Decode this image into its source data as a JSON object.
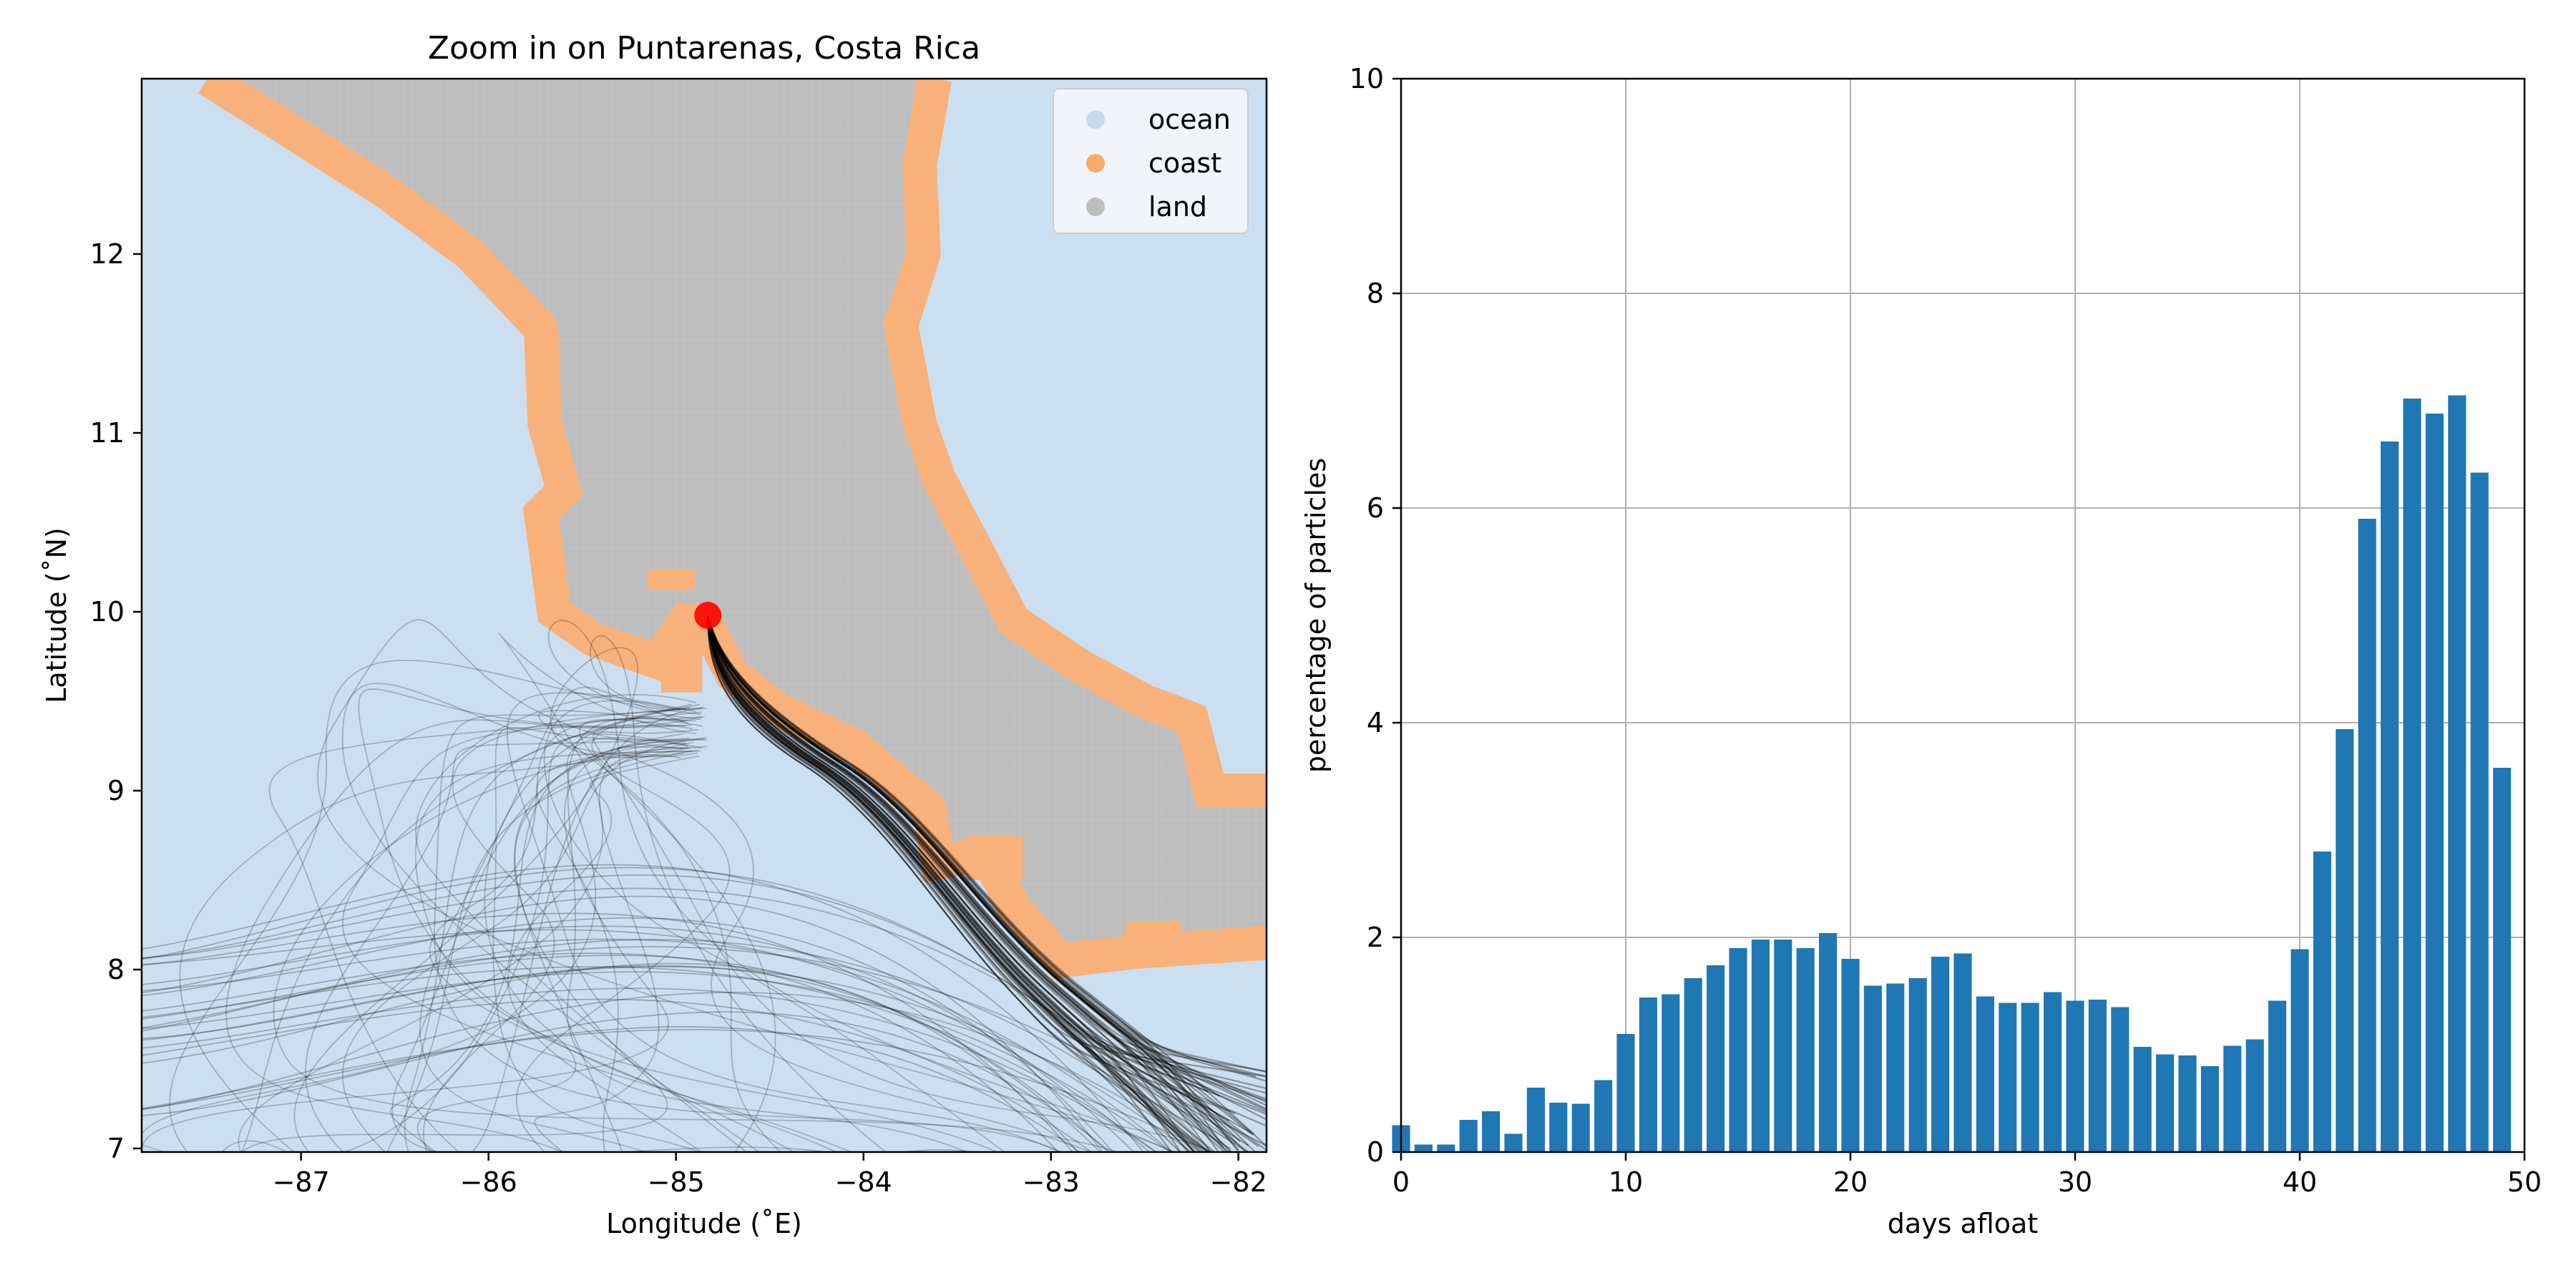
{
  "map": {
    "title": "Zoom in on Puntarenas, Costa Rica",
    "xlabel": "Longitude (˚E)",
    "ylabel": "Latitude (˚N)",
    "xlim": [
      -87.85,
      -81.85
    ],
    "ylim": [
      6.98,
      12.98
    ],
    "xticks": [
      -87,
      -86,
      -85,
      -84,
      -83,
      -82
    ],
    "xtick_labels": [
      "−87",
      "−86",
      "−85",
      "−84",
      "−83",
      "−82"
    ],
    "yticks": [
      7,
      8,
      9,
      10,
      11,
      12
    ],
    "ytick_labels": [
      "7",
      "8",
      "9",
      "10",
      "11",
      "12"
    ],
    "legend": {
      "placement": "upper right",
      "entries": [
        {
          "label": "ocean",
          "color": "#c6d9ee"
        },
        {
          "label": "coast",
          "color": "#f8ab6b"
        },
        {
          "label": "land",
          "color": "#bdbdbd"
        }
      ]
    },
    "colors": {
      "ocean": "#ccdff0",
      "coast": "#f8b17a",
      "land": "#bfbfbf",
      "release": "#ff0000",
      "trajectory": "#000000"
    },
    "release_point": {
      "lon": -84.83,
      "lat": 9.98
    },
    "land_west_boundary": [
      [
        -87.5,
        12.98
      ],
      [
        -87.15,
        12.75
      ],
      [
        -86.55,
        12.35
      ],
      [
        -86.1,
        12.0
      ],
      [
        -85.72,
        11.58
      ],
      [
        -85.7,
        11.05
      ],
      [
        -85.6,
        10.68
      ],
      [
        -85.72,
        10.55
      ],
      [
        -85.65,
        10.0
      ],
      [
        -85.45,
        9.85
      ],
      [
        -85.1,
        9.72
      ],
      [
        -84.95,
        9.95
      ],
      [
        -84.85,
        9.95
      ],
      [
        -84.7,
        9.65
      ],
      [
        -84.45,
        9.45
      ],
      [
        -84.05,
        9.25
      ],
      [
        -83.65,
        8.9
      ],
      [
        -83.6,
        8.6
      ],
      [
        -83.35,
        8.65
      ],
      [
        -83.2,
        8.35
      ],
      [
        -82.95,
        8.05
      ],
      [
        -82.55,
        8.1
      ],
      [
        -81.85,
        8.15
      ]
    ],
    "land_east_boundary": [
      [
        -81.85,
        9.0
      ],
      [
        -82.15,
        9.0
      ],
      [
        -82.25,
        9.4
      ],
      [
        -82.5,
        9.5
      ],
      [
        -82.85,
        9.7
      ],
      [
        -83.2,
        9.95
      ],
      [
        -83.4,
        10.35
      ],
      [
        -83.6,
        10.75
      ],
      [
        -83.7,
        11.05
      ],
      [
        -83.8,
        11.6
      ],
      [
        -83.68,
        12.0
      ],
      [
        -83.7,
        12.5
      ],
      [
        -83.62,
        12.98
      ]
    ],
    "coast_patches": [
      [
        -85.15,
        10.12,
        0.25,
        0.12
      ],
      [
        -85.08,
        9.55,
        0.22,
        0.3
      ],
      [
        -83.45,
        8.5,
        0.3,
        0.25
      ],
      [
        -82.6,
        8.15,
        0.3,
        0.12
      ],
      [
        -81.85,
        7.5,
        0.08,
        0.25
      ]
    ]
  },
  "chart_data": {
    "type": "bar",
    "title": "",
    "xlabel": "days afloat",
    "ylabel": "percentage of particles",
    "xlim": [
      0,
      50
    ],
    "ylim": [
      0,
      10
    ],
    "xticks": [
      0,
      10,
      20,
      30,
      40,
      50
    ],
    "yticks": [
      0,
      2,
      4,
      6,
      8,
      10
    ],
    "grid": true,
    "bar_color": "#1f77b4",
    "categories": [
      0,
      1,
      2,
      3,
      4,
      5,
      6,
      7,
      8,
      9,
      10,
      11,
      12,
      13,
      14,
      15,
      16,
      17,
      18,
      19,
      20,
      21,
      22,
      23,
      24,
      25,
      26,
      27,
      28,
      29,
      30,
      31,
      32,
      33,
      34,
      35,
      36,
      37,
      38,
      39,
      40,
      41,
      42,
      43,
      44,
      45,
      46,
      47,
      48,
      49
    ],
    "values": [
      0.25,
      0.07,
      0.07,
      0.3,
      0.38,
      0.17,
      0.6,
      0.46,
      0.45,
      0.67,
      1.1,
      1.44,
      1.47,
      1.62,
      1.74,
      1.9,
      1.98,
      1.98,
      1.9,
      2.04,
      1.8,
      1.55,
      1.57,
      1.62,
      1.82,
      1.85,
      1.45,
      1.39,
      1.39,
      1.49,
      1.41,
      1.42,
      1.35,
      0.98,
      0.91,
      0.9,
      0.8,
      0.99,
      1.05,
      1.41,
      1.89,
      2.8,
      3.94,
      5.9,
      6.62,
      7.02,
      6.88,
      7.05,
      6.33,
      3.58
    ]
  }
}
